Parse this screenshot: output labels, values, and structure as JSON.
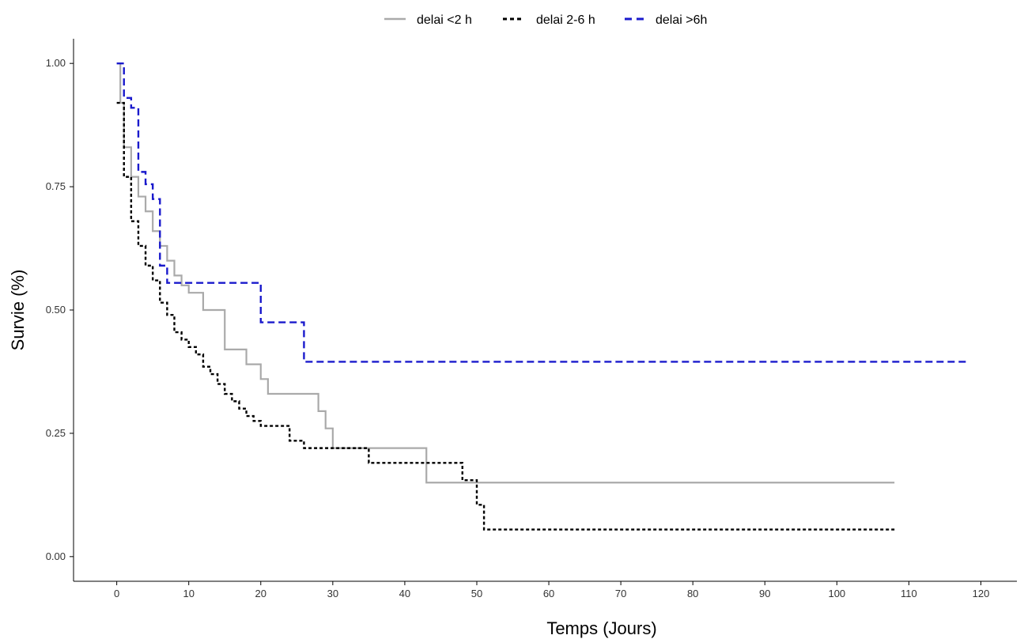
{
  "chart_data": {
    "type": "line",
    "step": true,
    "xlabel": "Temps (Jours)",
    "ylabel": "Survie (%)",
    "xlim": [
      -6,
      125
    ],
    "ylim": [
      -0.05,
      1.05
    ],
    "x_ticks": [
      0,
      10,
      20,
      30,
      40,
      50,
      60,
      70,
      80,
      90,
      100,
      110,
      120
    ],
    "x_tick_labels": [
      "0",
      "10",
      "20",
      "30",
      "40",
      "50",
      "60",
      "70",
      "80",
      "90",
      "100",
      "110",
      "120"
    ],
    "y_ticks": [
      0,
      0.25,
      0.5,
      0.75,
      1.0
    ],
    "y_tick_labels": [
      "0.00",
      "0.25",
      "0.50",
      "0.75",
      "1.00"
    ],
    "grid": false,
    "legend_position": "top",
    "series": [
      {
        "name": "delai <2 h",
        "color": "#aaaaaa",
        "dash": "solid",
        "x": [
          0,
          0.5,
          1,
          2,
          3,
          4,
          5,
          6,
          7,
          8,
          9,
          10,
          12,
          15,
          18,
          20,
          21,
          28,
          29,
          30,
          43,
          108
        ],
        "y": [
          1.0,
          0.92,
          0.83,
          0.77,
          0.73,
          0.7,
          0.66,
          0.63,
          0.6,
          0.57,
          0.55,
          0.535,
          0.5,
          0.42,
          0.39,
          0.36,
          0.33,
          0.295,
          0.26,
          0.22,
          0.15,
          0.15
        ]
      },
      {
        "name": "delai 2-6 h",
        "color": "#000000",
        "dash": "dotted",
        "x": [
          0,
          1,
          2,
          3,
          4,
          5,
          6,
          7,
          8,
          9,
          10,
          11,
          12,
          13,
          14,
          15,
          16,
          17,
          18,
          19,
          20,
          24,
          26,
          35,
          48,
          50,
          51,
          108
        ],
        "y": [
          0.92,
          0.77,
          0.68,
          0.63,
          0.59,
          0.56,
          0.515,
          0.49,
          0.455,
          0.44,
          0.425,
          0.41,
          0.385,
          0.37,
          0.35,
          0.33,
          0.315,
          0.3,
          0.285,
          0.275,
          0.265,
          0.235,
          0.22,
          0.19,
          0.155,
          0.105,
          0.055,
          0.055
        ]
      },
      {
        "name": "delai >6h",
        "color": "#1a1acc",
        "dash": "dashed",
        "x": [
          0,
          1,
          2,
          3,
          4,
          5,
          6,
          7,
          20,
          26,
          118
        ],
        "y": [
          1.0,
          0.93,
          0.91,
          0.78,
          0.755,
          0.725,
          0.59,
          0.555,
          0.475,
          0.395,
          0.395
        ]
      }
    ]
  }
}
